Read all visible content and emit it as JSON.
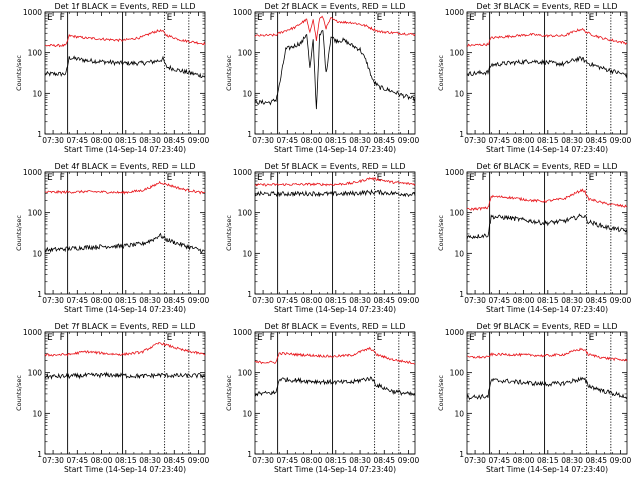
{
  "colors": {
    "background": "#ffffff",
    "axes": "#000000",
    "black_series": "#000000",
    "red_series": "#e8141a"
  },
  "panels": [
    {
      "title": "Det 1f BLACK = Events, RED = LLD",
      "markers": [
        "E",
        "F",
        "E"
      ]
    },
    {
      "title": "Det 2f BLACK = Events, RED = LLD",
      "markers": [
        "E",
        "F",
        "E"
      ]
    },
    {
      "title": "Det 3f BLACK = Events, RED = LLD",
      "markers": [
        "E",
        "F",
        "E"
      ]
    },
    {
      "title": "Det 4f BLACK = Events, RED = LLD",
      "markers": [
        "E",
        "F",
        "E"
      ]
    },
    {
      "title": "Det 5f BLACK = Events, RED = LLD",
      "markers": [
        "E",
        "F",
        "E"
      ]
    },
    {
      "title": "Det 6f BLACK = Events, RED = LLD",
      "markers": [
        "E",
        "F",
        "E"
      ]
    },
    {
      "title": "Det 7f BLACK = Events, RED = LLD",
      "markers": [
        "E",
        "F",
        "E"
      ]
    },
    {
      "title": "Det 8f BLACK = Events, RED = LLD",
      "markers": [
        "E",
        "F",
        "E"
      ]
    },
    {
      "title": "Det 9f BLACK = Events, RED = LLD",
      "markers": [
        "E",
        "F",
        "E"
      ]
    }
  ],
  "chart_data": {
    "type": "line",
    "grid": false,
    "xlabel": "Start Time (14-Sep-14 07:23:40)",
    "ylabel": "Counts/sec",
    "yscale": "log",
    "ylim": [
      1,
      1000
    ],
    "y_tick_labels": [
      "1",
      "10",
      "100",
      "1000"
    ],
    "x_tick_labels": [
      "07:30",
      "07:45",
      "08:00",
      "08:15",
      "08:30",
      "08:45",
      "09:00"
    ],
    "x_ticks_minutes_after_0730": [
      0,
      15,
      30,
      45,
      60,
      75,
      90
    ],
    "xlim_minutes_after_0730": [
      -5,
      94
    ],
    "vertical_markers_minutes_after_0730": {
      "solid": [
        9,
        43
      ],
      "dotted": [
        69,
        84
      ]
    },
    "series_names": [
      "BLACK = Events",
      "RED = LLD"
    ],
    "panels": [
      {
        "detector": "1f",
        "series": [
          {
            "name": "Events",
            "color": "#000000",
            "x": [
              -5,
              8,
              10,
              20,
              35,
              43,
              55,
              62,
              66,
              68,
              70,
              80,
              94
            ],
            "y": [
              30,
              30,
              75,
              65,
              58,
              55,
              55,
              60,
              65,
              70,
              45,
              35,
              26
            ]
          },
          {
            "name": "LLD",
            "color": "#e8141a",
            "x": [
              -5,
              8,
              10,
              20,
              35,
              43,
              55,
              62,
              66,
              68,
              70,
              80,
              94
            ],
            "y": [
              150,
              150,
              260,
              230,
              210,
              200,
              240,
              320,
              350,
              330,
              270,
              200,
              165
            ]
          }
        ]
      },
      {
        "detector": "2f",
        "series": [
          {
            "name": "Events",
            "color": "#000000",
            "x": [
              -5,
              5,
              8,
              10,
              14,
              20,
              24,
              27,
              29,
              31,
              33,
              35,
              37,
              39,
              42,
              45,
              50,
              55,
              60,
              64,
              68,
              72,
              78,
              86,
              94
            ],
            "y": [
              6,
              6,
              7,
              15,
              120,
              150,
              180,
              300,
              40,
              200,
              4,
              250,
              350,
              30,
              250,
              200,
              200,
              150,
              120,
              60,
              20,
              14,
              12,
              9,
              7
            ]
          },
          {
            "name": "LLD",
            "color": "#e8141a",
            "x": [
              -5,
              8,
              10,
              14,
              20,
              24,
              27,
              29,
              31,
              33,
              35,
              37,
              39,
              42,
              45,
              50,
              55,
              60,
              64,
              68,
              72,
              80,
              94
            ],
            "y": [
              260,
              270,
              300,
              350,
              420,
              550,
              650,
              300,
              700,
              200,
              700,
              750,
              400,
              700,
              600,
              560,
              550,
              500,
              450,
              380,
              330,
              310,
              280
            ]
          }
        ]
      },
      {
        "detector": "3f",
        "series": [
          {
            "name": "Events",
            "color": "#000000",
            "x": [
              -5,
              8,
              10,
              20,
              35,
              43,
              55,
              62,
              66,
              70,
              80,
              94
            ],
            "y": [
              30,
              33,
              50,
              55,
              62,
              58,
              52,
              68,
              72,
              55,
              40,
              28
            ]
          },
          {
            "name": "LLD",
            "color": "#e8141a",
            "x": [
              -5,
              8,
              10,
              20,
              35,
              43,
              55,
              62,
              66,
              70,
              80,
              94
            ],
            "y": [
              150,
              160,
              230,
              250,
              280,
              260,
              260,
              340,
              380,
              300,
              220,
              170
            ]
          }
        ]
      },
      {
        "detector": "4f",
        "series": [
          {
            "name": "Events",
            "color": "#000000",
            "x": [
              -5,
              10,
              20,
              35,
              43,
              55,
              62,
              66,
              70,
              80,
              94
            ],
            "y": [
              12,
              13,
              14,
              15,
              15,
              17,
              22,
              28,
              22,
              16,
              11
            ]
          },
          {
            "name": "LLD",
            "color": "#e8141a",
            "x": [
              -5,
              10,
              20,
              35,
              43,
              55,
              62,
              66,
              70,
              80,
              94
            ],
            "y": [
              320,
              320,
              330,
              320,
              310,
              350,
              450,
              560,
              500,
              380,
              300
            ]
          }
        ]
      },
      {
        "detector": "5f",
        "series": [
          {
            "name": "Events",
            "color": "#000000",
            "x": [
              -5,
              10,
              30,
              43,
              55,
              62,
              70,
              80,
              94
            ],
            "y": [
              290,
              290,
              295,
              290,
              295,
              310,
              320,
              300,
              280
            ]
          },
          {
            "name": "LLD",
            "color": "#e8141a",
            "x": [
              -5,
              10,
              30,
              43,
              55,
              62,
              66,
              72,
              80,
              94
            ],
            "y": [
              480,
              490,
              500,
              490,
              530,
              620,
              700,
              650,
              560,
              500
            ]
          }
        ]
      },
      {
        "detector": "6f",
        "series": [
          {
            "name": "Events",
            "color": "#000000",
            "x": [
              -5,
              8,
              10,
              20,
              35,
              43,
              55,
              62,
              66,
              68,
              70,
              80,
              94
            ],
            "y": [
              25,
              28,
              80,
              75,
              62,
              55,
              62,
              75,
              85,
              80,
              60,
              45,
              35
            ]
          },
          {
            "name": "LLD",
            "color": "#e8141a",
            "x": [
              -5,
              8,
              10,
              20,
              35,
              43,
              55,
              62,
              66,
              68,
              70,
              80,
              94
            ],
            "y": [
              120,
              130,
              250,
              240,
              200,
              190,
              220,
              300,
              360,
              330,
              220,
              170,
              140
            ]
          }
        ]
      },
      {
        "detector": "7f",
        "series": [
          {
            "name": "Events",
            "color": "#000000",
            "x": [
              -5,
              10,
              20,
              35,
              43,
              55,
              62,
              66,
              70,
              80,
              94
            ],
            "y": [
              80,
              82,
              85,
              88,
              85,
              82,
              85,
              88,
              86,
              84,
              85
            ]
          },
          {
            "name": "LLD",
            "color": "#e8141a",
            "x": [
              -5,
              10,
              20,
              35,
              43,
              55,
              62,
              66,
              70,
              80,
              94
            ],
            "y": [
              270,
              280,
              330,
              290,
              280,
              320,
              450,
              540,
              480,
              360,
              280
            ]
          }
        ]
      },
      {
        "detector": "8f",
        "series": [
          {
            "name": "Events",
            "color": "#000000",
            "x": [
              -5,
              8,
              10,
              20,
              35,
              43,
              55,
              62,
              66,
              68,
              70,
              80,
              94
            ],
            "y": [
              30,
              32,
              70,
              65,
              60,
              58,
              58,
              68,
              72,
              68,
              50,
              35,
              28
            ]
          },
          {
            "name": "LLD",
            "color": "#e8141a",
            "x": [
              -5,
              8,
              10,
              20,
              35,
              43,
              55,
              62,
              66,
              68,
              70,
              80,
              94
            ],
            "y": [
              180,
              180,
              300,
              280,
              260,
              250,
              270,
              350,
              390,
              360,
              280,
              210,
              170
            ]
          }
        ]
      },
      {
        "detector": "9f",
        "series": [
          {
            "name": "Events",
            "color": "#000000",
            "x": [
              -5,
              8,
              10,
              20,
              35,
              43,
              55,
              62,
              66,
              68,
              70,
              80,
              94
            ],
            "y": [
              25,
              26,
              65,
              62,
              55,
              52,
              55,
              65,
              70,
              65,
              48,
              35,
              25
            ]
          },
          {
            "name": "LLD",
            "color": "#e8141a",
            "x": [
              -5,
              8,
              10,
              20,
              35,
              43,
              55,
              62,
              66,
              68,
              70,
              80,
              94
            ],
            "y": [
              240,
              240,
              280,
              280,
              270,
              260,
              280,
              350,
              380,
              360,
              280,
              230,
              200
            ]
          }
        ]
      }
    ]
  }
}
